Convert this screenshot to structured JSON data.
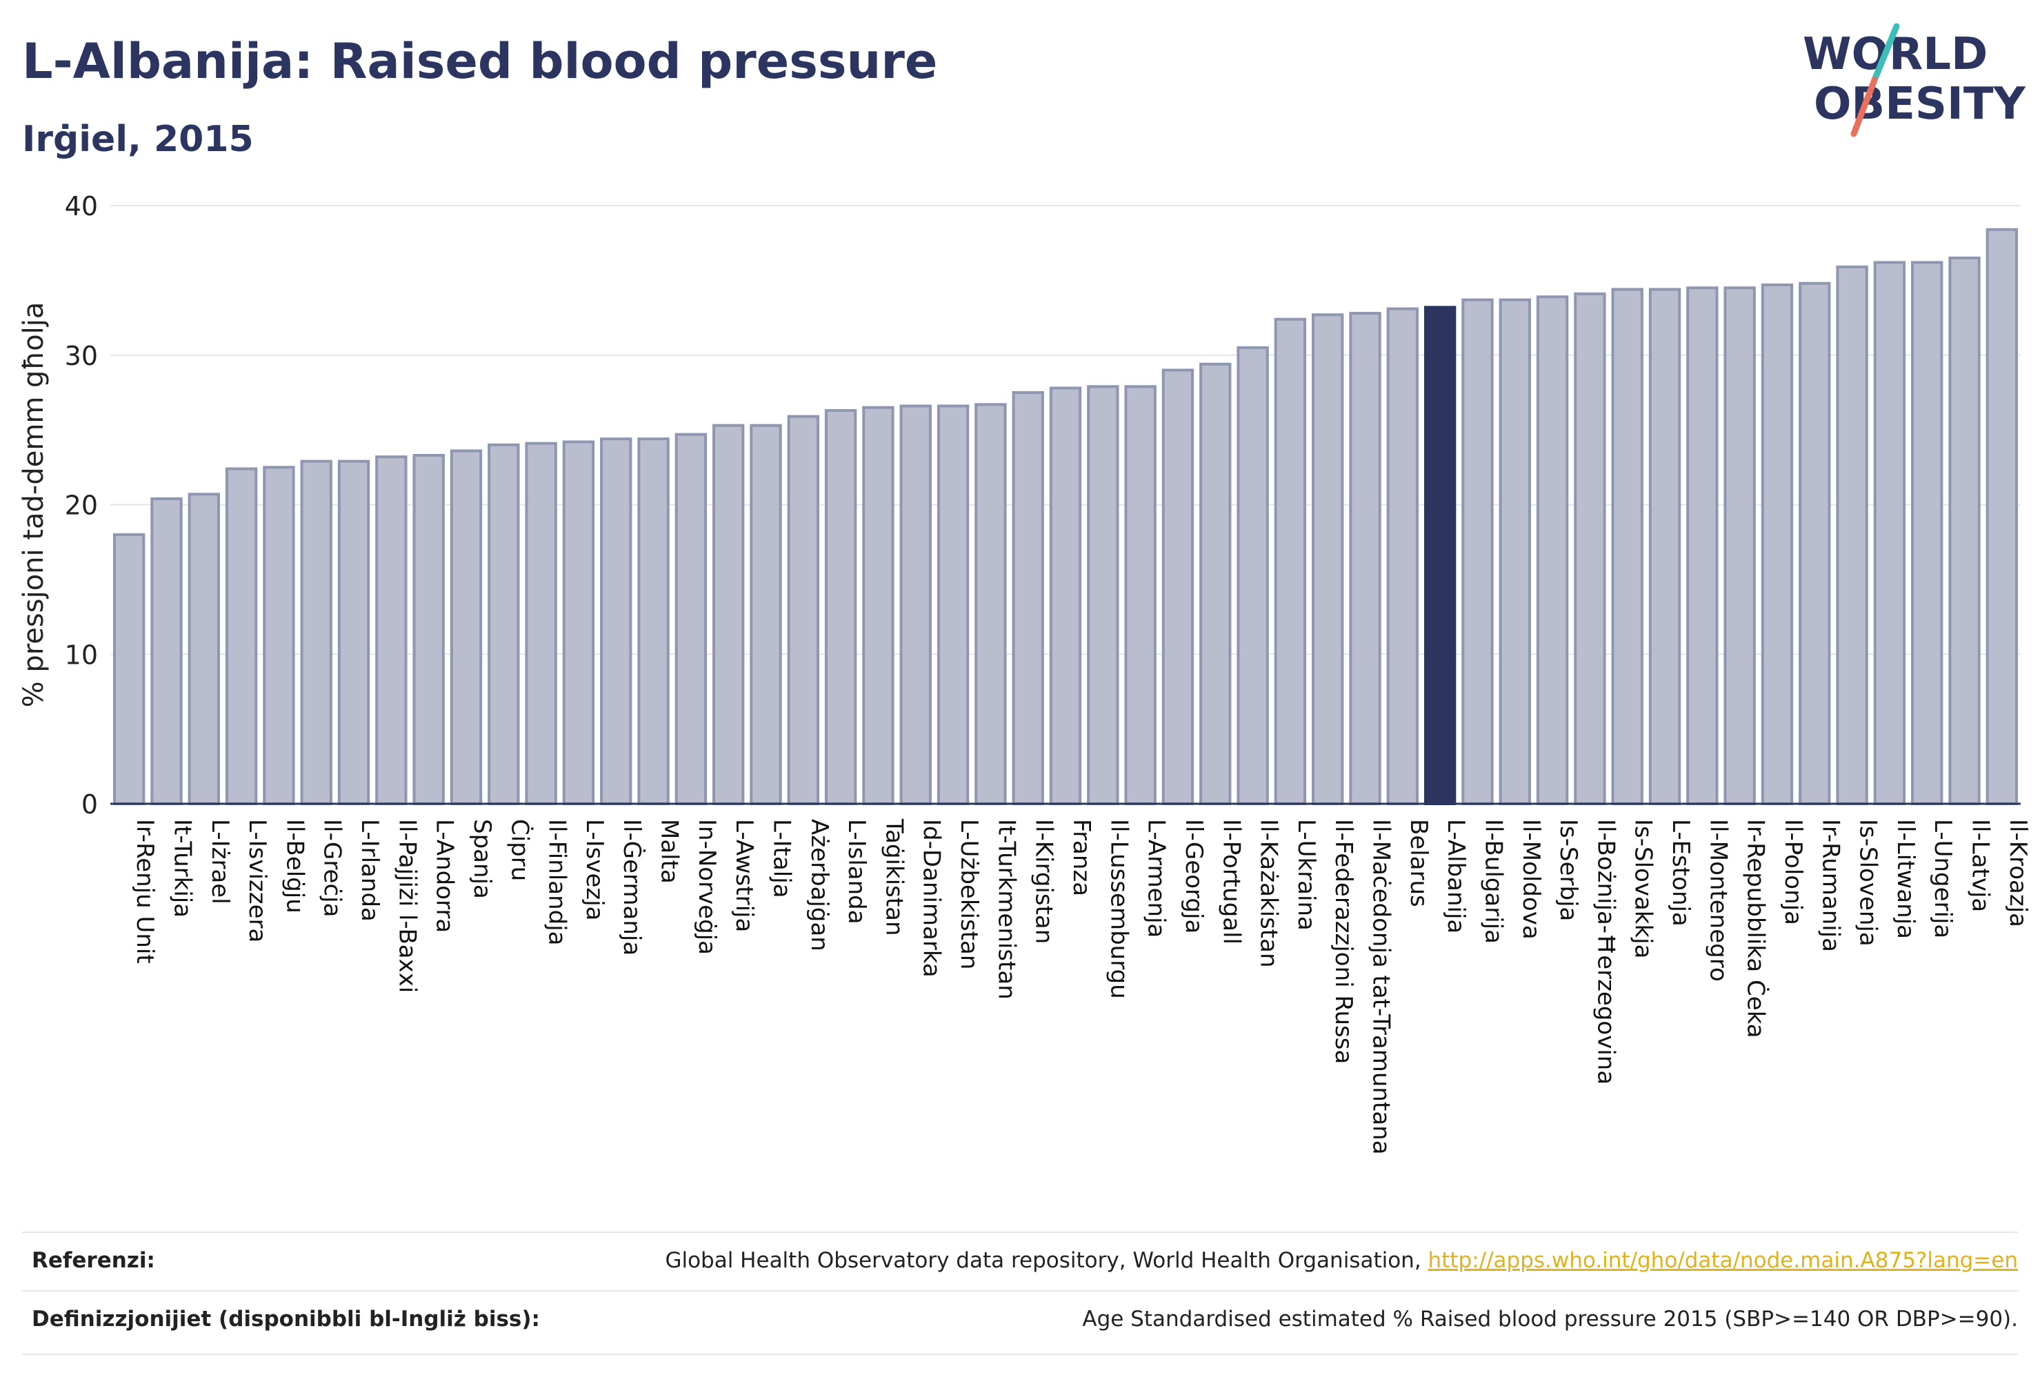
{
  "header": {
    "title": "L-Albanija: Raised blood pressure",
    "subtitle": "Irġiel, 2015"
  },
  "logo": {
    "line1": "WORLD",
    "line2": "OBESITY"
  },
  "colors": {
    "bar_default": "#b9bdcd",
    "bar_default_stroke": "#8f96b0",
    "bar_highlight": "#2b3560",
    "text_dark": "#2b3560",
    "link": "#e0b21b",
    "logo_teal": "#3bbfb8",
    "logo_coral": "#e8705c"
  },
  "chart_data": {
    "type": "bar",
    "ylabel": "% pressjoni tad-demm għolja",
    "ylim": [
      0,
      40
    ],
    "yticks": [
      0,
      10,
      20,
      30,
      40
    ],
    "grid": true,
    "highlight": "L-Albanija",
    "categories": [
      "Ir-Renju Unit",
      "It-Turkija",
      "L-Iżrael",
      "L-Isvizzera",
      "Il-Belġju",
      "Il-Greċja",
      "L-Irlanda",
      "Il-Pajjiżi l-Baxxi",
      "L-Andorra",
      "Spanja",
      "Ċipru",
      "Il-Finlandja",
      "L-Isvezja",
      "Il-Ġermanja",
      "Malta",
      "In-Norveġja",
      "L-Awstrija",
      "L-Italja",
      "Ażerbajġan",
      "L-Islanda",
      "Taġikistan",
      "Id-Danimarka",
      "L-Użbekistan",
      "It-Turkmenistan",
      "Il-Kirgistan",
      "Franza",
      "Il-Lussemburgu",
      "L-Armenja",
      "Il-Georgja",
      "Il-Portugall",
      "Il-Każakistan",
      "L-Ukraina",
      "Il-Federazzjoni Russa",
      "Il-Maċedonja tat-Tramuntana",
      "Belarus",
      "L-Albanija",
      "Il-Bulgarija",
      "Il-Moldova",
      "Is-Serbja",
      "Il-Bożnija-Ħerzegovina",
      "Is-Slovakkja",
      "L-Estonja",
      "Il-Montenegro",
      "Ir-Repubblika Ċeka",
      "Il-Polonja",
      "Ir-Rumanija",
      "Is-Slovenja",
      "Il-Litwanja",
      "L-Ungerija",
      "Il-Latvja",
      "Il-Kroazja"
    ],
    "values": [
      18.0,
      20.4,
      20.7,
      22.4,
      22.5,
      22.9,
      22.9,
      23.2,
      23.3,
      23.6,
      24.0,
      24.1,
      24.2,
      24.4,
      24.4,
      24.7,
      25.3,
      25.3,
      25.9,
      26.3,
      26.5,
      26.6,
      26.6,
      26.7,
      27.5,
      27.8,
      27.9,
      27.9,
      29.0,
      29.4,
      30.5,
      32.4,
      32.7,
      32.8,
      33.1,
      33.2,
      33.7,
      33.7,
      33.9,
      34.1,
      34.4,
      34.4,
      34.5,
      34.5,
      34.7,
      34.8,
      35.9,
      36.2,
      36.2,
      36.5,
      38.4
    ]
  },
  "footer": {
    "references_label": "Referenzi:",
    "references_text": "Global Health Observatory data repository, World Health Organisation,",
    "references_link": "http://apps.who.int/gho/data/node.main.A875?lang=en",
    "definitions_label": "Definizzjonijiet (disponibbli bl-Ingliż biss):",
    "definitions_text": "Age Standardised estimated % Raised blood pressure 2015 (SBP>=140 OR DBP>=90)."
  }
}
